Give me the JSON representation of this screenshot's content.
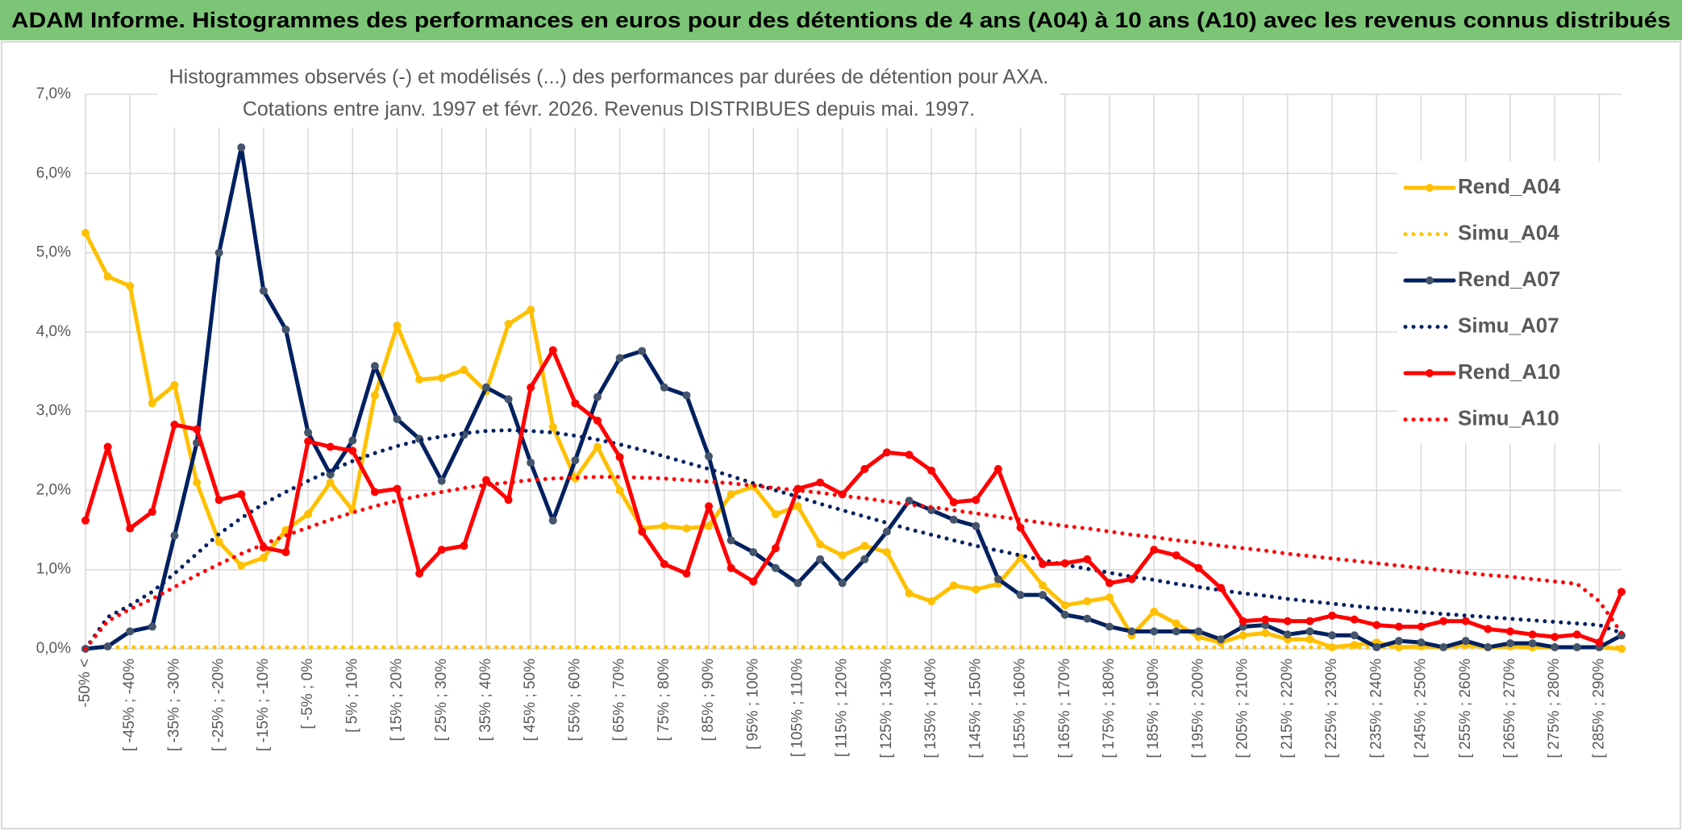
{
  "chart_data": {
    "type": "line",
    "title": "ADAM Informe. Histogrammes des performances en euros pour des détentions de 4 ans (A04) à 10 ans (A10) avec les revenus connus distribués",
    "subtitle": [
      "Histogrammes observés (-) et modélisés (...) des performances par durées de détention pour AXA.",
      "Cotations entre janv. 1997 et févr. 2026. Revenus DISTRIBUES depuis mai. 1997."
    ],
    "categories": [
      "-50% <",
      null,
      "[ -45% ; -40%",
      null,
      "[ -35% ; -30%",
      null,
      "[ -25% ; -20%",
      null,
      "[ -15% ; -10%",
      null,
      "[ -5% ; 0%",
      null,
      "[ 5% ; 10%",
      null,
      "[ 15% ; 20%",
      null,
      "[ 25% ; 30%",
      null,
      "[ 35% ; 40%",
      null,
      "[ 45% ; 50%",
      null,
      "[ 55% ; 60%",
      null,
      "[ 65% ; 70%",
      null,
      "[ 75% ; 80%",
      null,
      "[ 85% ; 90%",
      null,
      "[ 95% ; 100%",
      null,
      "[ 105% ; 110%",
      null,
      "[ 115% ; 120%",
      null,
      "[ 125% ; 130%",
      null,
      "[ 135% ; 140%",
      null,
      "[ 145% ; 150%",
      null,
      "[ 155% ; 160%",
      null,
      "[ 165% ; 170%",
      null,
      "[ 175% ; 180%",
      null,
      "[ 185% ; 190%",
      null,
      "[ 195% ; 200%",
      null,
      "[ 205% ; 210%",
      null,
      "[ 215% ; 220%",
      null,
      "[ 225% ; 230%",
      null,
      "[ 235% ; 240%",
      null,
      "[ 245% ; 250%",
      null,
      "[ 255% ; 260%",
      null,
      "[ 265% ; 270%",
      null,
      "[ 275% ; 280%",
      null,
      "[ 285% ; 290%",
      null
    ],
    "series": [
      {
        "name": "Rend_A04",
        "color": "#ffc000",
        "style": "solid",
        "marker_color": "#ffc000",
        "values": [
          5.25,
          4.7,
          4.58,
          3.1,
          3.33,
          2.1,
          1.35,
          1.05,
          1.15,
          1.5,
          1.7,
          2.1,
          1.75,
          3.2,
          4.08,
          3.4,
          3.42,
          3.52,
          3.25,
          4.1,
          4.28,
          2.8,
          2.15,
          2.55,
          2.0,
          1.52,
          1.55,
          1.52,
          1.55,
          1.95,
          2.05,
          1.7,
          1.8,
          1.32,
          1.18,
          1.3,
          1.22,
          0.7,
          0.6,
          0.8,
          0.75,
          0.82,
          1.15,
          0.8,
          0.55,
          0.6,
          0.65,
          0.17,
          0.47,
          0.32,
          0.15,
          0.08,
          0.17,
          0.2,
          0.12,
          0.12,
          0.02,
          0.05,
          0.08,
          0.02,
          0.03,
          0.02,
          0.05,
          0.02,
          0.03,
          0.02,
          0.02,
          0.02,
          0.02,
          0.0
        ]
      },
      {
        "name": "Simu_A04",
        "color": "#ffc000",
        "style": "dotted",
        "values": [
          0,
          0.02,
          0.02,
          0.02,
          0.02,
          0.02,
          0.02,
          0.02,
          0.02,
          0.02,
          0.02,
          0.02,
          0.02,
          0.02,
          0.02,
          0.02,
          0.02,
          0.02,
          0.02,
          0.02,
          0.02,
          0.02,
          0.02,
          0.02,
          0.02,
          0.02,
          0.02,
          0.02,
          0.02,
          0.02,
          0.02,
          0.02,
          0.02,
          0.02,
          0.02,
          0.02,
          0.02,
          0.02,
          0.02,
          0.02,
          0.02,
          0.02,
          0.02,
          0.02,
          0.02,
          0.02,
          0.02,
          0.02,
          0.02,
          0.02,
          0.02,
          0.02,
          0.02,
          0.02,
          0.02,
          0.02,
          0.02,
          0.02,
          0.02,
          0.02,
          0.02,
          0.02,
          0.02,
          0.02,
          0.02,
          0.02,
          0.02,
          0.02,
          0.02,
          0.02
        ]
      },
      {
        "name": "Rend_A07",
        "color": "#002060",
        "style": "solid",
        "marker_color": "#44546a",
        "values": [
          0,
          0.03,
          0.22,
          0.28,
          1.43,
          2.6,
          5.0,
          6.33,
          4.52,
          4.03,
          2.73,
          2.2,
          2.63,
          3.57,
          2.9,
          2.65,
          2.12,
          2.7,
          3.3,
          3.15,
          2.35,
          1.62,
          2.38,
          3.18,
          3.67,
          3.76,
          3.3,
          3.2,
          2.43,
          1.37,
          1.22,
          1.02,
          0.83,
          1.13,
          0.83,
          1.13,
          1.48,
          1.87,
          1.75,
          1.63,
          1.55,
          0.88,
          0.68,
          0.68,
          0.43,
          0.38,
          0.28,
          0.22,
          0.22,
          0.22,
          0.22,
          0.12,
          0.28,
          0.3,
          0.18,
          0.22,
          0.17,
          0.17,
          0.02,
          0.1,
          0.08,
          0.02,
          0.1,
          0.02,
          0.07,
          0.07,
          0.02,
          0.02,
          0.02,
          0.17
        ]
      },
      {
        "name": "Simu_A07",
        "color": "#002060",
        "style": "dotted",
        "values": [
          0,
          0.4,
          0.55,
          0.72,
          0.95,
          1.2,
          1.45,
          1.65,
          1.83,
          1.98,
          2.12,
          2.25,
          2.37,
          2.47,
          2.56,
          2.63,
          2.68,
          2.72,
          2.75,
          2.76,
          2.75,
          2.73,
          2.69,
          2.64,
          2.58,
          2.51,
          2.43,
          2.35,
          2.27,
          2.18,
          2.09,
          2.0,
          1.92,
          1.83,
          1.75,
          1.67,
          1.59,
          1.51,
          1.44,
          1.37,
          1.3,
          1.24,
          1.18,
          1.12,
          1.06,
          1.01,
          0.96,
          0.91,
          0.87,
          0.82,
          0.78,
          0.74,
          0.7,
          0.67,
          0.63,
          0.6,
          0.57,
          0.54,
          0.51,
          0.49,
          0.46,
          0.44,
          0.42,
          0.4,
          0.38,
          0.36,
          0.34,
          0.32,
          0.3,
          0.2
        ]
      },
      {
        "name": "Rend_A10",
        "color": "#ff0000",
        "style": "solid",
        "marker_color": "#ff0000",
        "values": [
          1.62,
          2.55,
          1.52,
          1.73,
          2.83,
          2.77,
          1.88,
          1.95,
          1.28,
          1.22,
          2.62,
          2.55,
          2.5,
          1.98,
          2.02,
          0.95,
          1.25,
          1.3,
          2.13,
          1.88,
          3.3,
          3.77,
          3.1,
          2.88,
          2.42,
          1.48,
          1.07,
          0.95,
          1.8,
          1.02,
          0.85,
          1.27,
          2.02,
          2.1,
          1.95,
          2.27,
          2.48,
          2.45,
          2.25,
          1.85,
          1.88,
          2.27,
          1.53,
          1.07,
          1.08,
          1.13,
          0.83,
          0.88,
          1.25,
          1.18,
          1.02,
          0.77,
          0.35,
          0.37,
          0.35,
          0.35,
          0.42,
          0.37,
          0.3,
          0.28,
          0.28,
          0.35,
          0.35,
          0.25,
          0.22,
          0.18,
          0.15,
          0.18,
          0.08,
          0.72
        ]
      },
      {
        "name": "Simu_A10",
        "color": "#ff0000",
        "style": "dotted",
        "values": [
          0,
          0.35,
          0.5,
          0.63,
          0.78,
          0.93,
          1.07,
          1.2,
          1.32,
          1.43,
          1.53,
          1.63,
          1.72,
          1.8,
          1.87,
          1.93,
          1.98,
          2.03,
          2.07,
          2.1,
          2.13,
          2.15,
          2.16,
          2.17,
          2.17,
          2.16,
          2.15,
          2.13,
          2.11,
          2.09,
          2.06,
          2.03,
          2.0,
          1.97,
          1.93,
          1.9,
          1.86,
          1.82,
          1.79,
          1.75,
          1.71,
          1.67,
          1.63,
          1.59,
          1.55,
          1.52,
          1.48,
          1.44,
          1.41,
          1.37,
          1.34,
          1.3,
          1.27,
          1.24,
          1.2,
          1.17,
          1.14,
          1.11,
          1.08,
          1.05,
          1.02,
          0.99,
          0.96,
          0.93,
          0.91,
          0.88,
          0.85,
          0.82,
          0.6,
          0.2
        ]
      }
    ],
    "ylim": [
      0,
      7
    ],
    "yticks": [
      {
        "value": 0,
        "label": "0,0%"
      },
      {
        "value": 1,
        "label": "1,0%"
      },
      {
        "value": 2,
        "label": "2,0%"
      },
      {
        "value": 3,
        "label": "3,0%"
      },
      {
        "value": 4,
        "label": "4,0%"
      },
      {
        "value": 5,
        "label": "5,0%"
      },
      {
        "value": 6,
        "label": "6,0%"
      },
      {
        "value": 7,
        "label": "7,0%"
      }
    ],
    "grid": true,
    "legend": "right"
  }
}
